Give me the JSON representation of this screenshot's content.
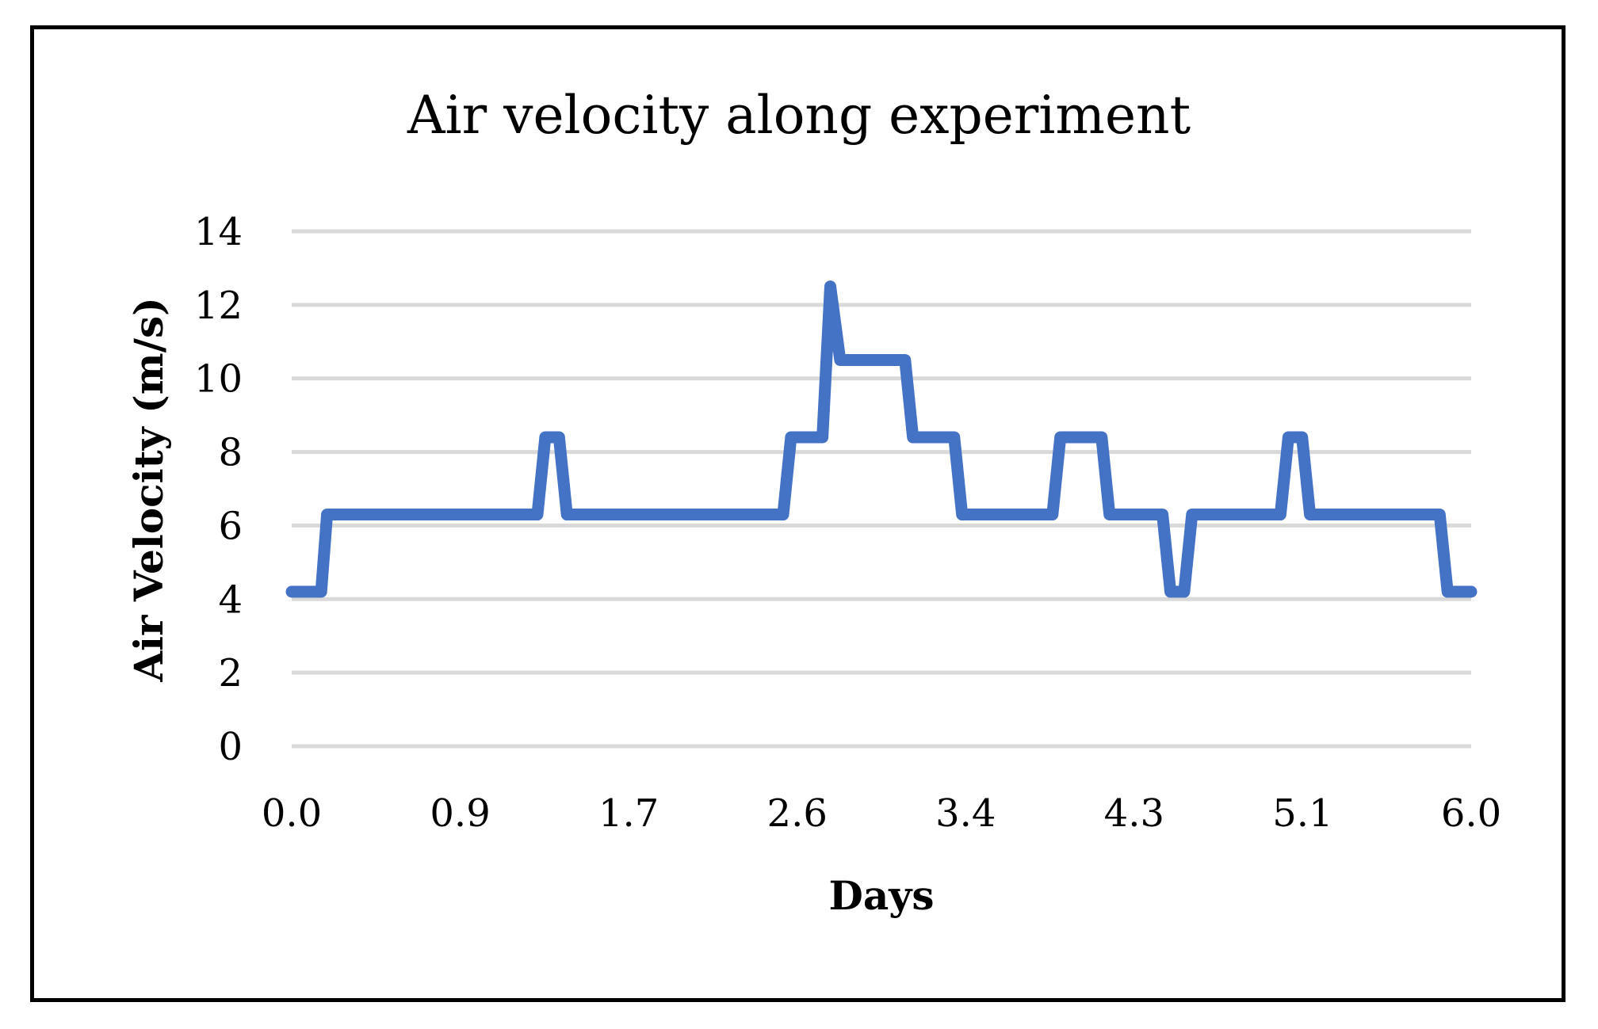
{
  "chart_data": {
    "type": "line",
    "title": "Air velocity along experiment",
    "xlabel": "Days",
    "ylabel": "Air Velocity (m/s)",
    "xlim": [
      0.0,
      6.0
    ],
    "ylim": [
      0,
      14
    ],
    "x_ticks": [
      "0.0",
      "0.9",
      "1.7",
      "2.6",
      "3.4",
      "4.3",
      "5.1",
      "6.0"
    ],
    "y_ticks": [
      "0",
      "2",
      "4",
      "6",
      "8",
      "10",
      "12",
      "14"
    ],
    "y_tick_values": [
      0,
      2,
      4,
      6,
      8,
      10,
      12,
      14
    ],
    "grid": true,
    "legend": "none",
    "series": [
      {
        "name": "Air Velocity",
        "color": "#4472C4",
        "x": [
          0.0,
          0.15,
          0.18,
          1.25,
          1.29,
          1.36,
          1.4,
          2.5,
          2.54,
          2.7,
          2.74,
          2.79,
          2.83,
          3.12,
          3.16,
          3.37,
          3.41,
          3.87,
          3.91,
          4.12,
          4.16,
          4.43,
          4.47,
          4.54,
          4.58,
          5.03,
          5.07,
          5.14,
          5.18,
          5.84,
          5.88,
          6.0
        ],
        "values": [
          4.2,
          4.2,
          6.3,
          6.3,
          8.4,
          8.4,
          6.3,
          6.3,
          8.4,
          8.4,
          12.5,
          10.5,
          10.5,
          10.5,
          8.4,
          8.4,
          6.3,
          6.3,
          8.4,
          8.4,
          6.3,
          6.3,
          4.2,
          4.2,
          6.3,
          6.3,
          8.4,
          8.4,
          6.3,
          6.3,
          4.2,
          4.2
        ]
      }
    ]
  }
}
